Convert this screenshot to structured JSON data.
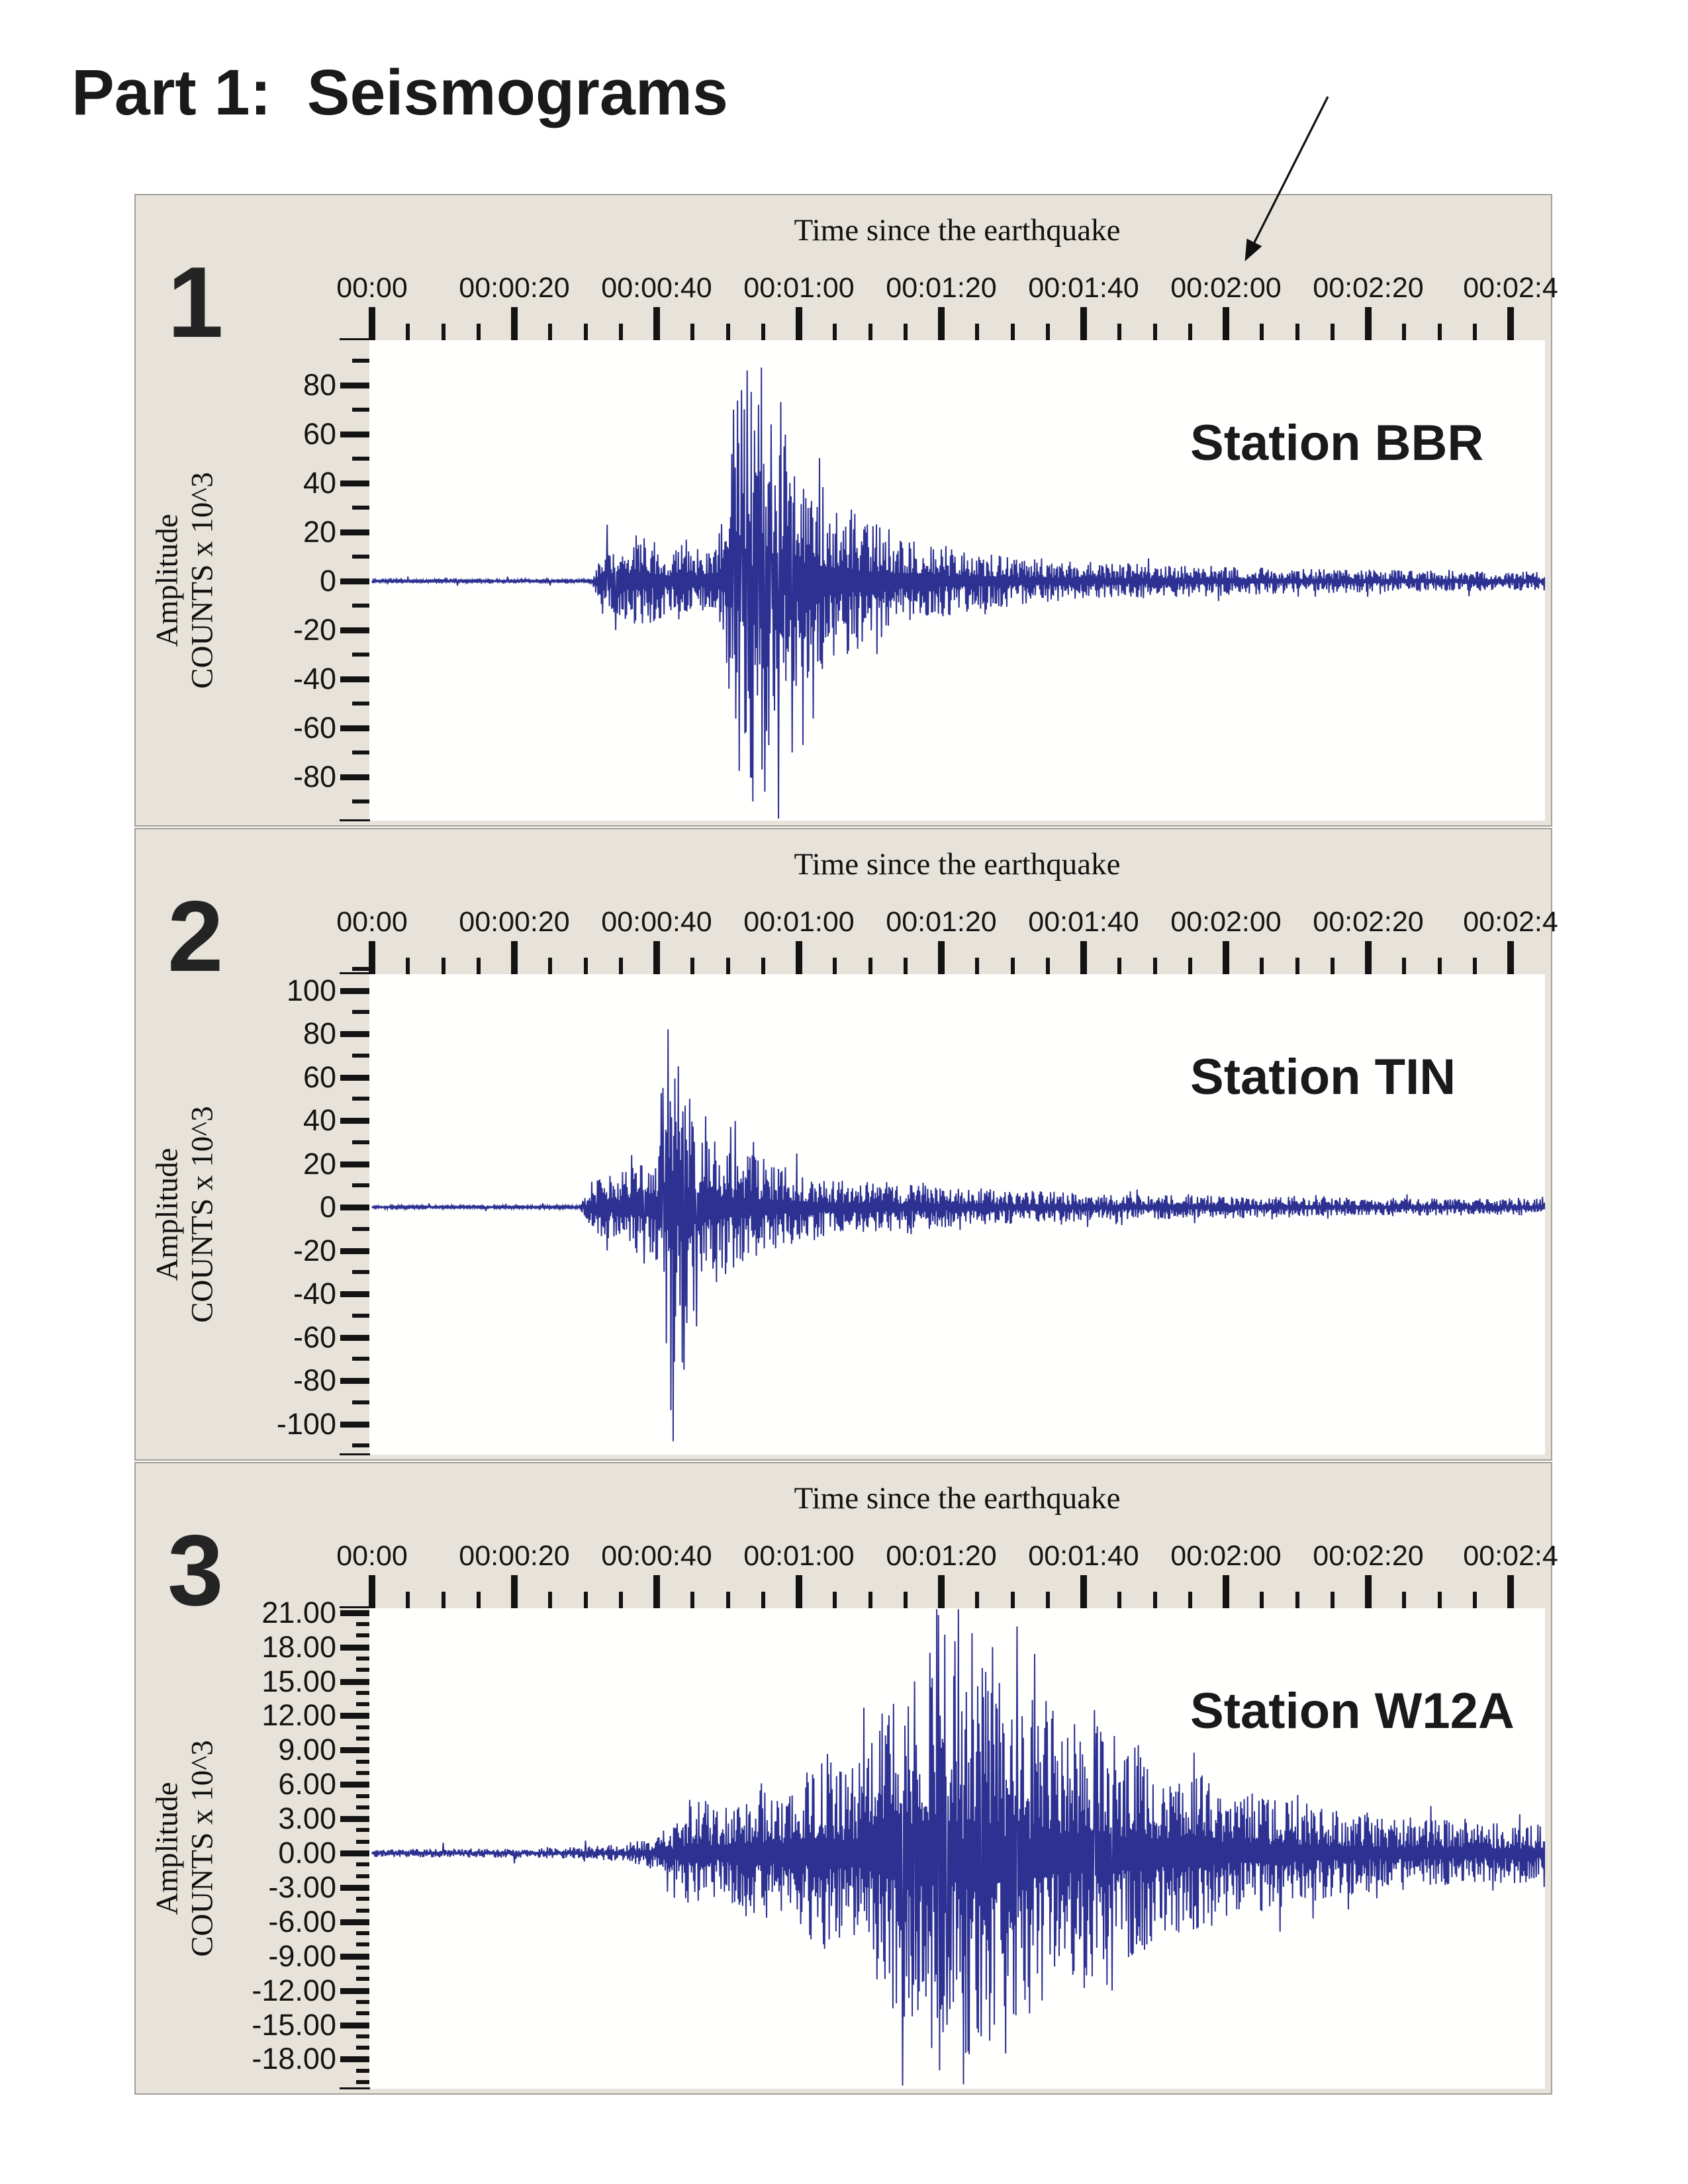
{
  "page_title": "Part 1:  Seismograms",
  "annotation": {
    "arrow_points_toward": "00:02:00"
  },
  "colors": {
    "trace": "#2d3192",
    "panel_background": "#e7e3da",
    "plot_background": "#fffffe",
    "ink": "#161616",
    "panel_border": "#a29f97"
  },
  "panels": [
    {
      "number": "1",
      "time_axis_title": "Time since the earthquake",
      "station": "Station BBR",
      "y_axis_label_line1": "Amplitude",
      "y_axis_label_line2": "COUNTS x 10^3"
    },
    {
      "number": "2",
      "time_axis_title": "Time since the earthquake",
      "station": "Station TIN",
      "y_axis_label_line1": "Amplitude",
      "y_axis_label_line2": "COUNTS x 10^3"
    },
    {
      "number": "3",
      "time_axis_title": "Time since the earthquake",
      "station": "Station W12A",
      "y_axis_label_line1": "Amplitude",
      "y_axis_label_line2": "COUNTS x 10^3"
    }
  ],
  "chart_data": [
    {
      "type": "line",
      "title": "Station BBR seismogram",
      "xlabel": "Time since the earthquake",
      "ylabel": "Amplitude COUNTS x 10^3",
      "x_tick_labels": [
        "00:00",
        "00:00:20",
        "00:00:40",
        "00:01:00",
        "00:01:20",
        "00:01:40",
        "00:02:00",
        "00:02:20",
        "00:02:4"
      ],
      "x_tick_seconds": [
        0,
        20,
        40,
        60,
        80,
        100,
        120,
        140,
        160
      ],
      "x_minor_step_seconds": 5,
      "x_range_seconds": [
        0,
        165
      ],
      "y_tick_values": [
        80,
        60,
        40,
        20,
        0,
        -20,
        -40,
        -60,
        -80
      ],
      "y_tick_labels": [
        "80",
        "60",
        "40",
        "20",
        "0",
        "-20",
        "-40",
        "-60",
        "-80"
      ],
      "y_minor_step": 10,
      "y_view_range": [
        -97.5,
        98
      ],
      "envelope": [
        [
          0,
          0.8
        ],
        [
          31,
          0.8
        ],
        [
          32,
          16
        ],
        [
          33,
          22
        ],
        [
          34,
          14
        ],
        [
          36,
          17
        ],
        [
          38,
          20
        ],
        [
          40,
          16
        ],
        [
          42,
          14
        ],
        [
          44,
          18
        ],
        [
          46,
          15
        ],
        [
          48,
          16
        ],
        [
          49.5,
          30
        ],
        [
          50.5,
          60
        ],
        [
          52,
          85
        ],
        [
          53.5,
          95
        ],
        [
          55,
          80
        ],
        [
          56.5,
          70
        ],
        [
          57.5,
          85
        ],
        [
          58.5,
          60
        ],
        [
          60,
          48
        ],
        [
          63,
          40
        ],
        [
          66,
          32
        ],
        [
          69,
          27
        ],
        [
          72,
          23
        ],
        [
          76,
          18
        ],
        [
          80,
          15
        ],
        [
          85,
          12
        ],
        [
          92,
          10
        ],
        [
          100,
          8
        ],
        [
          110,
          7
        ],
        [
          120,
          6
        ],
        [
          132,
          5
        ],
        [
          145,
          4.5
        ],
        [
          160,
          4
        ]
      ],
      "peak_points": [
        [
          5,
          1.8
        ],
        [
          12,
          -1.8
        ],
        [
          19,
          1.8
        ],
        [
          25,
          -1.8
        ],
        [
          33.0,
          23
        ],
        [
          34.2,
          -20
        ],
        [
          50.8,
          70
        ],
        [
          51.9,
          78
        ],
        [
          52.7,
          86
        ],
        [
          53.5,
          -90
        ],
        [
          54.3,
          72
        ],
        [
          55.2,
          -86
        ],
        [
          56.1,
          64
        ],
        [
          57.1,
          -97
        ],
        [
          57.9,
          55
        ],
        [
          59.0,
          -70
        ]
      ]
    },
    {
      "type": "line",
      "title": "Station TIN seismogram",
      "xlabel": "Time since the earthquake",
      "ylabel": "Amplitude COUNTS x 10^3",
      "x_tick_labels": [
        "00:00",
        "00:00:20",
        "00:00:40",
        "00:01:00",
        "00:01:20",
        "00:01:40",
        "00:02:00",
        "00:02:20",
        "00:02:4"
      ],
      "x_tick_seconds": [
        0,
        20,
        40,
        60,
        80,
        100,
        120,
        140,
        160
      ],
      "x_minor_step_seconds": 5,
      "x_range_seconds": [
        0,
        165
      ],
      "y_tick_values": [
        100,
        80,
        60,
        40,
        20,
        0,
        -20,
        -40,
        -60,
        -80,
        -100
      ],
      "y_tick_labels": [
        "100",
        "80",
        "60",
        "40",
        "20",
        "0",
        "-20",
        "-40",
        "-60",
        "-80",
        "-100"
      ],
      "y_minor_step": 10,
      "y_view_range": [
        -113,
        107
      ],
      "envelope": [
        [
          0,
          0.8
        ],
        [
          29,
          0.8
        ],
        [
          30.5,
          9
        ],
        [
          32,
          14
        ],
        [
          34,
          17
        ],
        [
          36,
          20
        ],
        [
          38,
          22
        ],
        [
          40,
          30
        ],
        [
          41,
          70
        ],
        [
          42,
          100
        ],
        [
          43,
          85
        ],
        [
          44.5,
          55
        ],
        [
          46,
          42
        ],
        [
          48,
          36
        ],
        [
          50,
          30
        ],
        [
          53,
          26
        ],
        [
          56,
          21
        ],
        [
          60,
          17
        ],
        [
          64,
          14
        ],
        [
          68,
          12
        ],
        [
          73,
          11
        ],
        [
          78,
          10
        ],
        [
          84,
          9
        ],
        [
          90,
          8
        ],
        [
          98,
          7
        ],
        [
          106,
          6
        ],
        [
          115,
          5.5
        ],
        [
          125,
          5
        ],
        [
          135,
          4.5
        ],
        [
          150,
          4
        ],
        [
          165,
          4
        ]
      ],
      "peak_points": [
        [
          8,
          1.8
        ],
        [
          16,
          -1.8
        ],
        [
          24,
          1.8
        ],
        [
          36.5,
          24
        ],
        [
          38.2,
          -26
        ],
        [
          40.9,
          55
        ],
        [
          41.6,
          82
        ],
        [
          42.3,
          -108
        ],
        [
          43.0,
          65
        ],
        [
          43.8,
          -75
        ],
        [
          44.6,
          50
        ],
        [
          45.6,
          -55
        ]
      ]
    },
    {
      "type": "line",
      "title": "Station W12A seismogram",
      "xlabel": "Time since the earthquake",
      "ylabel": "Amplitude COUNTS x 10^3",
      "x_tick_labels": [
        "00:00",
        "00:00:20",
        "00:00:40",
        "00:01:00",
        "00:01:20",
        "00:01:40",
        "00:02:00",
        "00:02:20",
        "00:02:4"
      ],
      "x_tick_seconds": [
        0,
        20,
        40,
        60,
        80,
        100,
        120,
        140,
        160
      ],
      "x_minor_step_seconds": 5,
      "x_range_seconds": [
        0,
        165
      ],
      "y_tick_values": [
        21,
        18,
        15,
        12,
        9,
        6,
        3,
        0,
        -3,
        -6,
        -9,
        -12,
        -15,
        -18
      ],
      "y_tick_labels": [
        "21.00",
        "18.00",
        "15.00",
        "12.00",
        "9.00",
        "6.00",
        "3.00",
        "0.00",
        "-3.00",
        "-6.00",
        "-9.00",
        "-12.00",
        "-15.00",
        "-18.00"
      ],
      "y_minor_step": 1,
      "y_view_range": [
        -20.5,
        21.3
      ],
      "envelope": [
        [
          0,
          0.35
        ],
        [
          15,
          0.4
        ],
        [
          25,
          0.45
        ],
        [
          32,
          0.6
        ],
        [
          36,
          0.9
        ],
        [
          40,
          1.5
        ],
        [
          43,
          3
        ],
        [
          45,
          5.5
        ],
        [
          47,
          4.5
        ],
        [
          49,
          3.5
        ],
        [
          51,
          5
        ],
        [
          54,
          6.5
        ],
        [
          57,
          5
        ],
        [
          60,
          6
        ],
        [
          62,
          8
        ],
        [
          64,
          9
        ],
        [
          66,
          7.5
        ],
        [
          68,
          8
        ],
        [
          70,
          10
        ],
        [
          72,
          13
        ],
        [
          74,
          16
        ],
        [
          76,
          15
        ],
        [
          78,
          18
        ],
        [
          80,
          20
        ],
        [
          82,
          17
        ],
        [
          84,
          19
        ],
        [
          86,
          16
        ],
        [
          88,
          17
        ],
        [
          90,
          15
        ],
        [
          92,
          16
        ],
        [
          94,
          13
        ],
        [
          96,
          12
        ],
        [
          98,
          11
        ],
        [
          100,
          12
        ],
        [
          102,
          13
        ],
        [
          104,
          11
        ],
        [
          106,
          9
        ],
        [
          108,
          10
        ],
        [
          110,
          8
        ],
        [
          113,
          7
        ],
        [
          116,
          8
        ],
        [
          119,
          6
        ],
        [
          122,
          5.5
        ],
        [
          126,
          5
        ],
        [
          130,
          4.5
        ],
        [
          135,
          4
        ],
        [
          141,
          3.5
        ],
        [
          148,
          3
        ],
        [
          155,
          2.8
        ],
        [
          165,
          2.5
        ]
      ],
      "peak_points": [
        [
          10,
          0.9
        ],
        [
          20,
          -0.9
        ],
        [
          30,
          1.1
        ],
        [
          74.6,
          -20.3
        ],
        [
          76.2,
          15
        ],
        [
          78.4,
          17.5
        ],
        [
          79.6,
          20.8
        ],
        [
          80.8,
          -15
        ],
        [
          81.9,
          18.5
        ],
        [
          83.1,
          -20.2
        ],
        [
          84.3,
          19.2
        ],
        [
          85.6,
          -16
        ],
        [
          87.2,
          18
        ],
        [
          89.0,
          -17.5
        ],
        [
          90.6,
          19.8
        ],
        [
          92.4,
          -14
        ],
        [
          101.5,
          12.5
        ],
        [
          104.0,
          -12
        ]
      ]
    }
  ]
}
